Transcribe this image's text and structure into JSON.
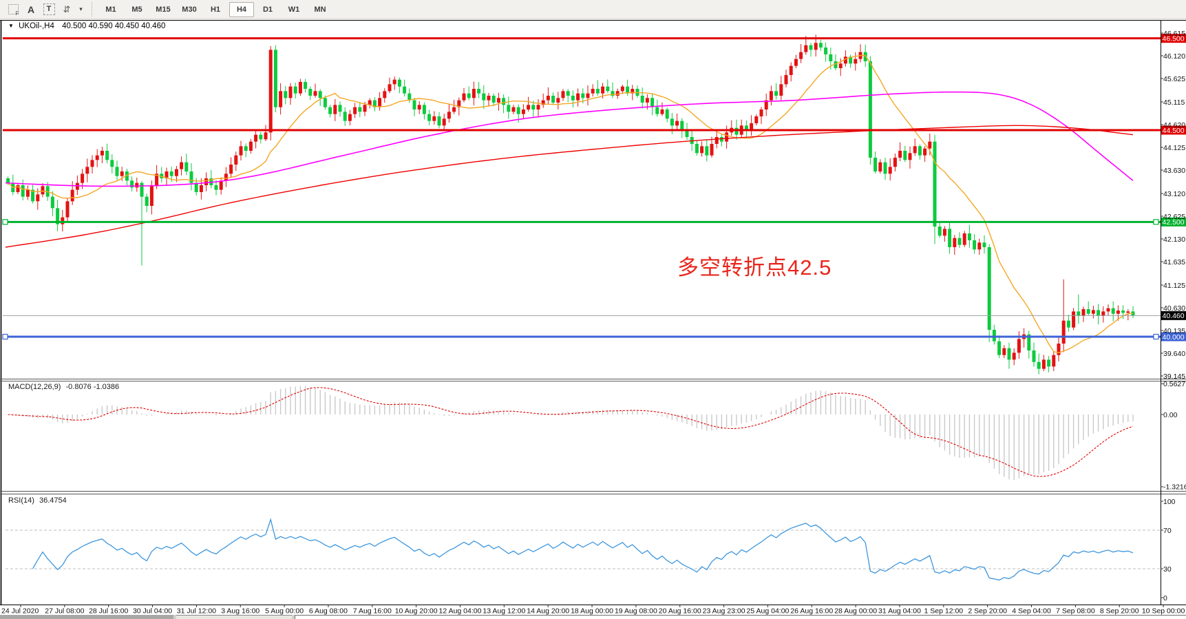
{
  "toolbar": {
    "tools": [
      {
        "name": "dock-grid-f-icon",
        "glyph": "F"
      },
      {
        "name": "arrow-tool-icon",
        "glyph": "A"
      },
      {
        "name": "text-label-tool-icon",
        "glyph": "T"
      },
      {
        "name": "cursor-arrows-icon",
        "glyph": "⇵"
      },
      {
        "name": "dropdown-caret-icon",
        "glyph": "▾"
      }
    ],
    "timeframes": [
      "M1",
      "M5",
      "M15",
      "M30",
      "H1",
      "H4",
      "D1",
      "W1",
      "MN"
    ],
    "active_timeframe": "H4"
  },
  "chart": {
    "symbol_period": "UKOil-,H4",
    "ohlc": "40.500 40.590 40.450 40.460",
    "annotation": {
      "text": "多空转折点42.5",
      "color": "#e8251b"
    },
    "price_levels": [
      {
        "value": "46.500",
        "price": 46.5,
        "color": "#e00000",
        "type": "resistance-line",
        "width": 3,
        "handles": false
      },
      {
        "value": "44.500",
        "price": 44.5,
        "color": "#e00000",
        "type": "resistance-line",
        "width": 3,
        "handles": false
      },
      {
        "value": "42.500",
        "price": 42.5,
        "color": "#00b22d",
        "type": "pivot-line",
        "width": 3,
        "handles": true
      },
      {
        "value": "40.460",
        "price": 40.46,
        "color": "#000000",
        "type": "current-price-line",
        "width": 1,
        "handles": false
      },
      {
        "value": "40.000",
        "price": 40.0,
        "color": "#3d63d6",
        "type": "support-line",
        "width": 3,
        "handles": true
      }
    ],
    "y_ticks": [
      "46.615",
      "46.120",
      "45.625",
      "45.115",
      "44.620",
      "44.125",
      "43.630",
      "43.120",
      "42.625",
      "42.130",
      "41.635",
      "41.125",
      "40.630",
      "40.135",
      "39.640",
      "39.145"
    ],
    "time_ticks": [
      "24 Jul 2020",
      "27 Jul 08:00",
      "28 Jul 16:00",
      "30 Jul 04:00",
      "31 Jul 12:00",
      "3 Aug 16:00",
      "5 Aug 00:00",
      "6 Aug 08:00",
      "7 Aug 16:00",
      "10 Aug 20:00",
      "12 Aug 04:00",
      "13 Aug 12:00",
      "14 Aug 20:00",
      "18 Aug 00:00",
      "19 Aug 08:00",
      "20 Aug 16:00",
      "23 Aug 23:00",
      "25 Aug 04:00",
      "26 Aug 16:00",
      "28 Aug 00:00",
      "31 Aug 04:00",
      "1 Sep 12:00",
      "2 Sep 20:00",
      "4 Sep 04:00",
      "7 Sep 08:00",
      "8 Sep 20:00",
      "10 Sep 00:00"
    ]
  },
  "macd": {
    "label": "MACD(12,26,9)",
    "values": "-0.8076 -1.0386",
    "ticks": [
      {
        "label": "0.5627",
        "value": 0.5627
      },
      {
        "label": "0.00",
        "value": 0.0
      },
      {
        "label": "-1.3216",
        "value": -1.3216
      }
    ]
  },
  "rsi": {
    "label": "RSI(14)",
    "value": "36.4754",
    "ticks": [
      {
        "label": "100",
        "value": 100,
        "dashed": false
      },
      {
        "label": "70",
        "value": 70,
        "dashed": true
      },
      {
        "label": "30",
        "value": 30,
        "dashed": true
      },
      {
        "label": "0",
        "value": 0,
        "dashed": false
      }
    ]
  },
  "chart_data": {
    "type": "candlestick",
    "symbol": "UKOil-",
    "timeframe": "H4",
    "x_range": [
      "24 Jul 2020",
      "10 Sep 2020"
    ],
    "y_range": [
      39.08,
      46.9
    ],
    "closes": [
      43.35,
      43.15,
      43.3,
      43.05,
      43.2,
      42.95,
      43.1,
      43.28,
      43.05,
      42.8,
      42.45,
      42.6,
      42.95,
      43.2,
      43.35,
      43.55,
      43.7,
      43.85,
      43.95,
      44.05,
      43.85,
      43.7,
      43.5,
      43.6,
      43.4,
      43.25,
      43.35,
      43.05,
      42.85,
      43.3,
      43.55,
      43.45,
      43.6,
      43.5,
      43.65,
      43.8,
      43.6,
      43.35,
      43.15,
      43.3,
      43.45,
      43.3,
      43.2,
      43.4,
      43.55,
      43.75,
      43.95,
      44.15,
      44.05,
      44.25,
      44.4,
      44.3,
      44.45,
      46.25,
      45.0,
      45.35,
      45.2,
      45.45,
      45.3,
      45.55,
      45.4,
      45.25,
      45.35,
      45.2,
      45.0,
      44.85,
      45.05,
      44.9,
      44.7,
      44.85,
      45.0,
      44.9,
      45.05,
      45.15,
      45.0,
      45.2,
      45.35,
      45.5,
      45.6,
      45.45,
      45.3,
      45.15,
      44.95,
      45.05,
      44.85,
      44.7,
      44.8,
      44.6,
      44.75,
      44.9,
      45.0,
      45.15,
      45.3,
      45.2,
      45.4,
      45.3,
      45.15,
      45.25,
      45.1,
      45.2,
      45.05,
      44.9,
      45.0,
      44.85,
      44.95,
      45.05,
      44.95,
      45.05,
      45.15,
      45.25,
      45.1,
      45.2,
      45.35,
      45.25,
      45.15,
      45.3,
      45.2,
      45.3,
      45.4,
      45.3,
      45.45,
      45.35,
      45.25,
      45.35,
      45.45,
      45.3,
      45.4,
      45.25,
      45.1,
      45.2,
      45.0,
      44.85,
      44.95,
      44.75,
      44.6,
      44.7,
      44.5,
      44.35,
      44.2,
      44.0,
      44.15,
      43.95,
      44.2,
      44.35,
      44.25,
      44.45,
      44.55,
      44.4,
      44.6,
      44.5,
      44.65,
      44.8,
      44.95,
      45.15,
      45.35,
      45.25,
      45.5,
      45.7,
      45.9,
      46.05,
      46.2,
      46.35,
      46.25,
      46.4,
      46.3,
      46.15,
      46.0,
      45.85,
      45.95,
      46.1,
      45.95,
      46.05,
      46.2,
      46.0,
      43.9,
      43.6,
      43.8,
      43.55,
      43.7,
      43.9,
      44.05,
      43.85,
      44.0,
      44.15,
      43.95,
      44.1,
      44.25,
      42.4,
      42.2,
      42.35,
      41.95,
      42.15,
      42.0,
      42.25,
      42.1,
      41.9,
      42.05,
      41.95,
      40.15,
      39.9,
      39.6,
      39.75,
      39.5,
      39.65,
      39.95,
      40.05,
      39.7,
      39.45,
      39.3,
      39.5,
      39.35,
      39.6,
      39.85,
      40.35,
      40.2,
      40.55,
      40.45,
      40.6,
      40.5,
      40.58,
      40.45,
      40.55,
      40.62,
      40.5,
      40.57,
      40.52,
      40.55,
      40.46
    ],
    "wick_overrides": {
      "10": {
        "low": 42.3
      },
      "27": {
        "low": 41.55
      },
      "53": {
        "high": 46.33
      },
      "141": {
        "low": 43.82
      },
      "161": {
        "high": 46.55
      },
      "163": {
        "high": 46.58
      },
      "187": {
        "low": 42.02
      },
      "198": {
        "low": 39.88
      },
      "202": {
        "low": 39.3
      },
      "208": {
        "low": 39.18
      },
      "213": {
        "high": 41.25
      },
      "216": {
        "high": 40.92
      }
    },
    "moving_averages": {
      "orange_sma_period": 14,
      "magenta_anchors": [
        [
          0,
          43.35
        ],
        [
          0.08,
          43.28
        ],
        [
          0.16,
          43.32
        ],
        [
          0.22,
          43.5
        ],
        [
          0.3,
          43.95
        ],
        [
          0.38,
          44.4
        ],
        [
          0.46,
          44.75
        ],
        [
          0.54,
          44.95
        ],
        [
          0.62,
          45.08
        ],
        [
          0.7,
          45.15
        ],
        [
          0.78,
          45.28
        ],
        [
          0.84,
          45.33
        ],
        [
          0.88,
          45.28
        ],
        [
          0.91,
          45.05
        ],
        [
          0.94,
          44.6
        ],
        [
          0.97,
          44.0
        ],
        [
          1,
          43.4
        ]
      ],
      "red_anchors": [
        [
          0,
          41.95
        ],
        [
          0.07,
          42.22
        ],
        [
          0.13,
          42.52
        ],
        [
          0.2,
          42.92
        ],
        [
          0.28,
          43.3
        ],
        [
          0.36,
          43.62
        ],
        [
          0.44,
          43.88
        ],
        [
          0.52,
          44.08
        ],
        [
          0.6,
          44.25
        ],
        [
          0.68,
          44.38
        ],
        [
          0.76,
          44.48
        ],
        [
          0.84,
          44.56
        ],
        [
          0.9,
          44.6
        ],
        [
          0.95,
          44.54
        ],
        [
          1,
          44.4
        ]
      ]
    },
    "indicators": {
      "macd_params": [
        12,
        26,
        9
      ],
      "rsi_period": 14
    }
  },
  "colors": {
    "up_candle": "#e31212",
    "down_candle": "#0ccb3e",
    "ma_orange": "#f5a623",
    "ma_magenta": "#ff00ff",
    "ma_red": "#ee0000",
    "macd_hist": "#c9c9c9",
    "macd_signal": "#e00000",
    "rsi_line": "#3d96dd",
    "dashed_level": "#bcbcbc",
    "current_price_line": "#9aa0a6",
    "axis_text": "#111111"
  }
}
